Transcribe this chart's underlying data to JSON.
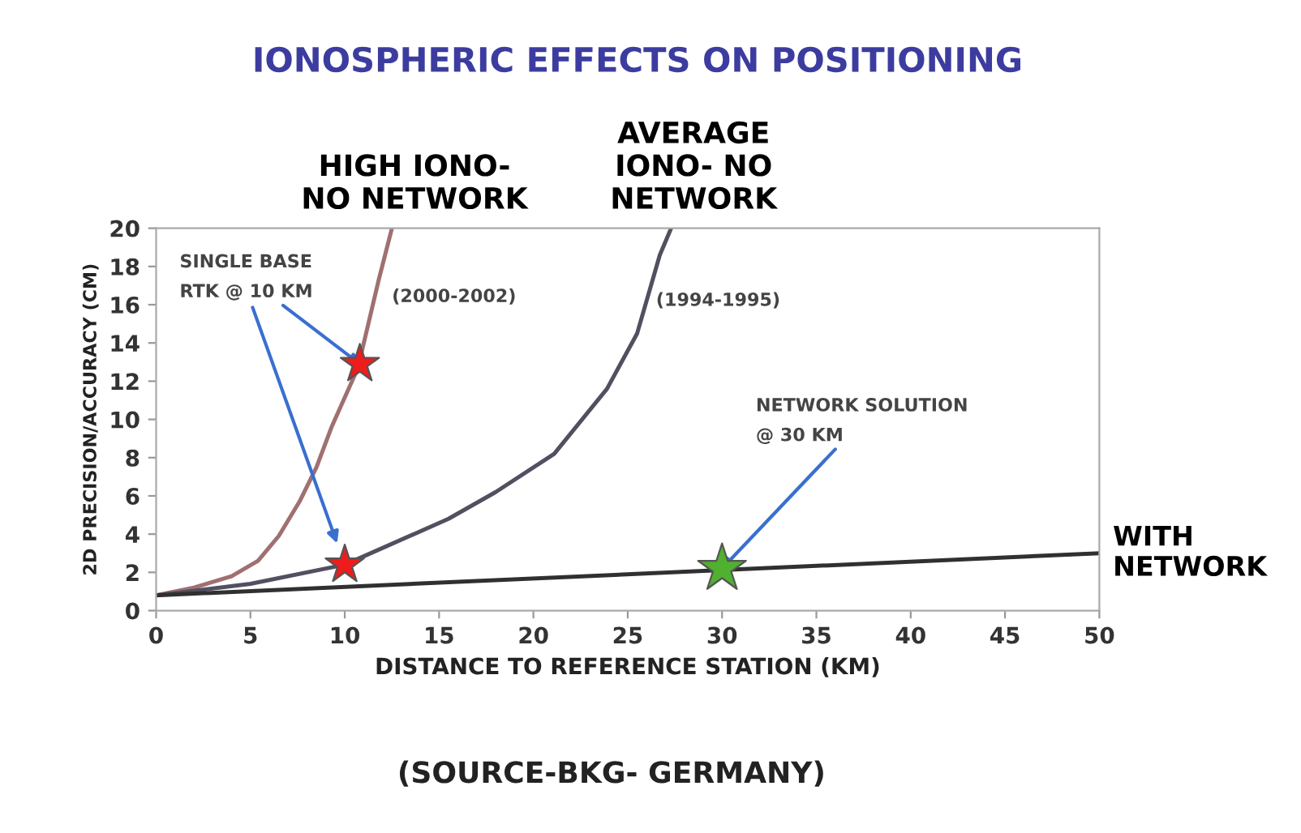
{
  "chart_data": {
    "type": "line",
    "title": "IONOSPHERIC EFFECTS ON POSITIONING",
    "xlabel": "DISTANCE TO REFERENCE STATION (KM)",
    "ylabel": "2D PRECISION/ACCURACY (CM)",
    "xlim": [
      0,
      50
    ],
    "xticks": [
      0,
      5,
      10,
      15,
      20,
      25,
      30,
      35,
      40,
      45,
      50
    ],
    "ylim": [
      0,
      20
    ],
    "yticks": [
      0,
      2,
      4,
      6,
      8,
      10,
      12,
      14,
      16,
      18,
      20
    ],
    "grid": false,
    "legend": false,
    "marker": "none",
    "line_style": "solid",
    "series": [
      {
        "name": "HIGH IONO- NO NETWORK",
        "color": "#a07070",
        "x": [
          0,
          2,
          4,
          5.4,
          6.5,
          7.6,
          8.5,
          9.3,
          10.7,
          11.8,
          12.5
        ],
        "values": [
          0.8,
          1.2,
          1.8,
          2.6,
          3.9,
          5.7,
          7.5,
          9.6,
          12.7,
          17.3,
          20
        ]
      },
      {
        "name": "AVERAGE IONO- NO NETWORK",
        "color": "#505060",
        "x": [
          0,
          5,
          10,
          15.5,
          18,
          21.1,
          23.9,
          25.5,
          26.7,
          27.3
        ],
        "values": [
          0.8,
          1.4,
          2.4,
          4.8,
          6.2,
          8.2,
          11.6,
          14.5,
          18.6,
          20
        ]
      },
      {
        "name": "WITH NETWORK",
        "color": "#303030",
        "x": [
          0,
          50
        ],
        "values": [
          0.8,
          3.0
        ]
      },
      {
        "type": "scatter",
        "marker": "star",
        "color": "#ee1c1c",
        "x": [
          10.8,
          10
        ],
        "values": [
          12.9,
          2.4
        ]
      },
      {
        "type": "scatter",
        "marker": "star",
        "color": "#50b030",
        "x": [
          30
        ],
        "values": [
          2.2
        ]
      }
    ],
    "annotations": [
      {
        "text": "SINGLE BASE\nRTK @ 10 KM",
        "x": 10.8,
        "y": 12.9
      },
      {
        "text": "NETWORK SOLUTION\n@ 30 KM",
        "x": 30,
        "y": 2.2
      },
      "(2000-2002)",
      "(1994-1995)",
      "(SOURCE-BKG- GERMANY)"
    ]
  }
}
